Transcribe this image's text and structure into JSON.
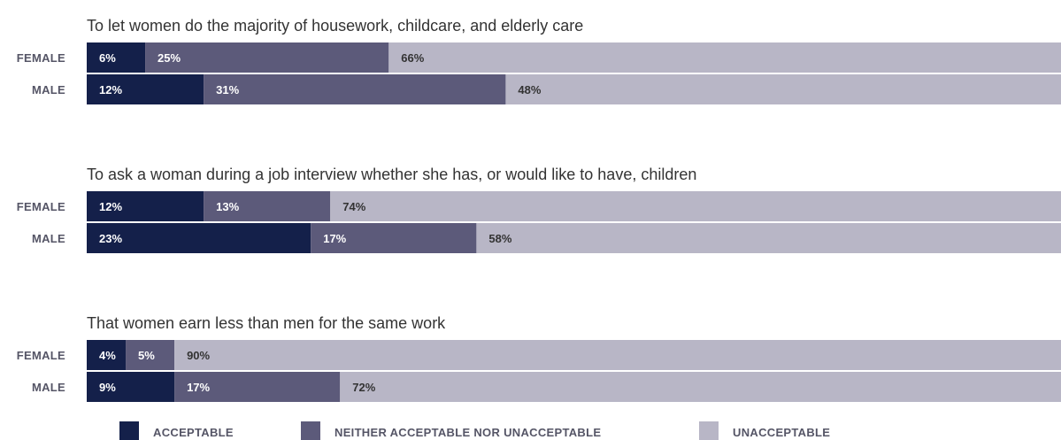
{
  "chart_data": {
    "type": "bar",
    "orientation": "horizontal",
    "stacked": true,
    "xlim": [
      0,
      100
    ],
    "legend_position": "bottom",
    "grid": false,
    "categories_order": [
      "FEMALE",
      "MALE"
    ],
    "series": [
      {
        "name": "ACCEPTABLE",
        "color": "#14204a"
      },
      {
        "name": "NEITHER ACCEPTABLE NOR UNACCEPTABLE",
        "color": "#5c5a7a"
      },
      {
        "name": "UNACCEPTABLE",
        "color": "#b8b6c6"
      }
    ],
    "groups": [
      {
        "title": "To let women do the majority of housework, childcare, and elderly care",
        "rows": [
          {
            "label": "FEMALE",
            "values": [
              6,
              25,
              66
            ],
            "value_labels": [
              "6%",
              "25%",
              "66%"
            ]
          },
          {
            "label": "MALE",
            "values": [
              12,
              31,
              48
            ],
            "value_labels": [
              "12%",
              "31%",
              "48%"
            ]
          }
        ]
      },
      {
        "title": "To ask a woman during a job interview whether she has, or would like to have, children",
        "rows": [
          {
            "label": "FEMALE",
            "values": [
              12,
              13,
              74
            ],
            "value_labels": [
              "12%",
              "13%",
              "74%"
            ]
          },
          {
            "label": "MALE",
            "values": [
              23,
              17,
              58
            ],
            "value_labels": [
              "23%",
              "17%",
              "58%"
            ]
          }
        ]
      },
      {
        "title": "That women earn less than men for the same work",
        "rows": [
          {
            "label": "FEMALE",
            "values": [
              4,
              5,
              90
            ],
            "value_labels": [
              "4%",
              "5%",
              "90%"
            ]
          },
          {
            "label": "MALE",
            "values": [
              9,
              17,
              72
            ],
            "value_labels": [
              "9%",
              "17%",
              "72%"
            ]
          }
        ]
      }
    ]
  }
}
